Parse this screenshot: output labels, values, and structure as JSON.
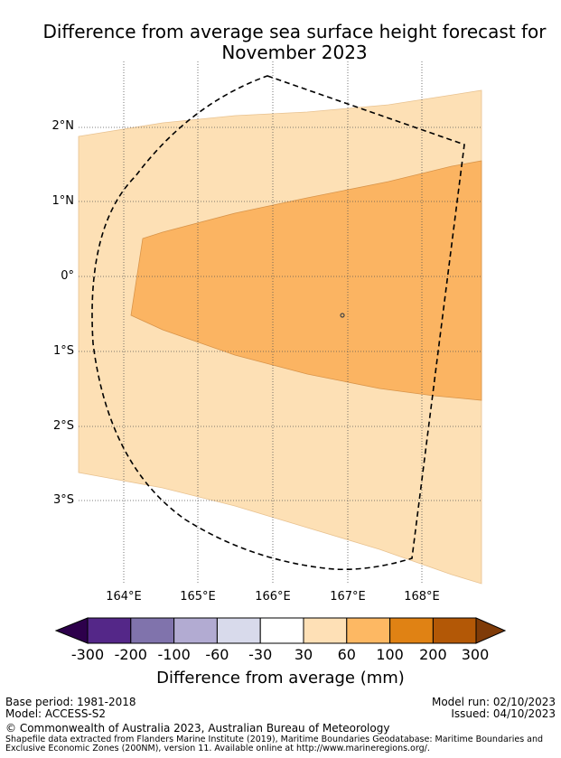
{
  "title_line1": "Difference from average sea surface height forecast for",
  "title_line2": "November 2023",
  "map": {
    "lat_labels": [
      "2°N",
      "1°N",
      "0°",
      "1°S",
      "2°S",
      "3°S"
    ],
    "lon_labels": [
      "164°E",
      "165°E",
      "166°E",
      "167°E",
      "168°E"
    ],
    "extent": {
      "lon_min": 163.4,
      "lon_max": 168.8,
      "lat_min": -4.05,
      "lat_max": 2.88
    },
    "bands": [
      {
        "name": "30 to 60 mm",
        "color": "#fde0b5"
      },
      {
        "name": "60 to 100 mm",
        "color": "#fbb462"
      }
    ],
    "boundary_style": "dashed",
    "island_marker": {
      "lon": 166.93,
      "lat": -0.52
    }
  },
  "colorbar": {
    "ticks": [
      "-300",
      "-200",
      "-100",
      "-60",
      "-30",
      "30",
      "60",
      "100",
      "200",
      "300"
    ],
    "colors": [
      "#2d004b",
      "#542788",
      "#8073ac",
      "#b2abd2",
      "#d8daeb",
      "#ffffff",
      "#fee0b6",
      "#fdb863",
      "#e08214",
      "#b35806",
      "#7f3b08"
    ],
    "label": "Difference from average (mm)"
  },
  "footer": {
    "base_period": "Base period: 1981-2018",
    "model": "Model: ACCESS-S2",
    "model_run": "Model run: 02/10/2023",
    "issued": "Issued: 04/10/2023",
    "copyright": "© Commonwealth of Australia 2023, Australian Bureau of Meteorology",
    "shapefile_line1": "Shapefile data extracted from Flanders Marine Institute (2019), Maritime Boundaries Geodatabase: Maritime Boundaries and",
    "shapefile_line2": "Exclusive Economic Zones (200NM), version 11. Available online at http://www.marineregions.org/."
  }
}
